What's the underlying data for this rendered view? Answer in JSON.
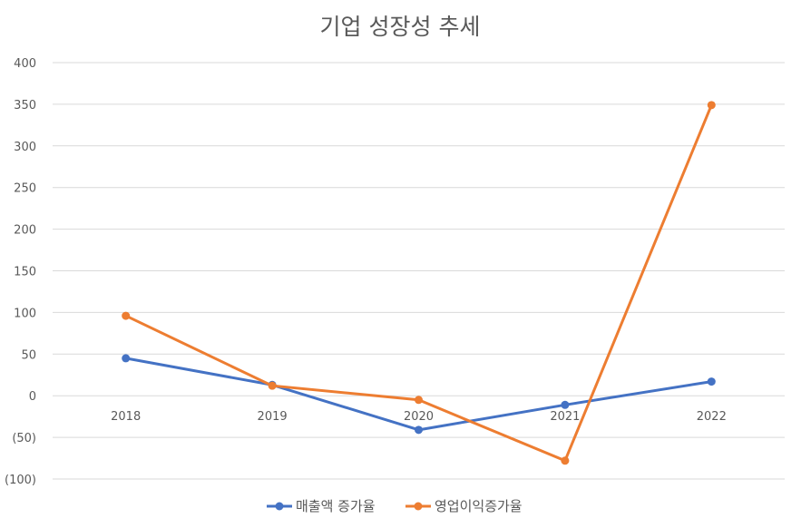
{
  "chart_data": {
    "type": "line",
    "title": "기업 성장성 추세",
    "xlabel": "",
    "ylabel": "",
    "categories": [
      "2018",
      "2019",
      "2020",
      "2021",
      "2022"
    ],
    "ylim": [
      -100,
      400
    ],
    "yticks": [
      400,
      350,
      300,
      250,
      200,
      150,
      100,
      50,
      0,
      -50,
      -100
    ],
    "ytick_labels": [
      "400",
      "350",
      "300",
      "250",
      "200",
      "150",
      "100",
      "50",
      "0",
      "(50)",
      "(100)"
    ],
    "grid": true,
    "legend_position": "bottom",
    "series": [
      {
        "name": "매출액 증가율",
        "color": "#4472C4",
        "values": [
          45,
          13,
          -41,
          -11,
          17
        ]
      },
      {
        "name": "영업이익증가율",
        "color": "#ED7D31",
        "values": [
          96,
          12,
          -5,
          -78,
          349
        ]
      }
    ]
  }
}
